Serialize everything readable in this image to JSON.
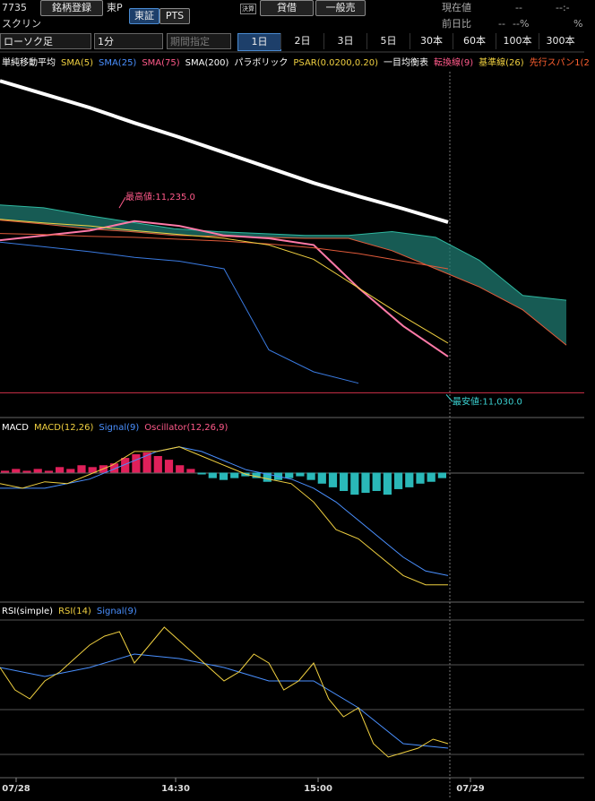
{
  "header": {
    "code": "7735",
    "name": "スクリン",
    "register": "銘柄登録",
    "market": "東P",
    "markets": [
      "東証",
      "PTS"
    ],
    "icon": "決算",
    "buttons": [
      "貸借",
      "一般売"
    ],
    "quote": {
      "current_label": "現在値",
      "current_value": "--",
      "current_time": "--:-",
      "change_label": "前日比",
      "change_value": "--",
      "change_pct": "--%",
      "extra": "%"
    }
  },
  "toolbar": {
    "chart_type": "ローソク足",
    "interval": "1分",
    "period": "期間指定",
    "ranges": [
      "1日",
      "2日",
      "3日",
      "5日",
      "30本",
      "60本",
      "100本",
      "300本"
    ],
    "active_range": 0
  },
  "price_panel": {
    "legend": [
      {
        "text": "単純移動平均",
        "color": "#ffffff"
      },
      {
        "text": "SMA(5)",
        "color": "#f0d040"
      },
      {
        "text": "SMA(25)",
        "color": "#4a90ff"
      },
      {
        "text": "SMA(75)",
        "color": "#ff5a8a"
      },
      {
        "text": "SMA(200)",
        "color": "#ffffff"
      },
      {
        "text": "パラボリック",
        "color": "#ffffff"
      },
      {
        "text": "PSAR(0.0200,0.20)",
        "color": "#f0d040"
      },
      {
        "text": "一目均衡表",
        "color": "#ffffff"
      },
      {
        "text": "転換線(9)",
        "color": "#ff5a8a"
      },
      {
        "text": "基準線(26)",
        "color": "#f0d040"
      },
      {
        "text": "先行スパン1(2",
        "color": "#ff6030"
      }
    ],
    "high_label": "最高値:11,235.0",
    "low_label": "最安値:11,030.0",
    "high": 11235,
    "low": 11030,
    "ylim": [
      11005,
      11362
    ],
    "series": [
      {
        "color": "#ffffff",
        "width": 4,
        "values": [
          11357,
          11343,
          11329,
          11313,
          11298,
          11282,
          11266,
          11250,
          11236,
          11223,
          11209
        ]
      },
      {
        "color": "#ff7aa8",
        "width": 2,
        "values": [
          11190,
          11195,
          11200,
          11210,
          11205,
          11195,
          11192,
          11185,
          11140,
          11100,
          11068
        ]
      },
      {
        "color": "#e05a3a",
        "width": 1,
        "values": [
          11197,
          11196,
          11194,
          11193,
          11191,
          11189,
          11186,
          11182,
          11176,
          11168,
          11160
        ]
      },
      {
        "color": "#f0d040",
        "width": 1,
        "values": [
          11212,
          11208,
          11205,
          11200,
          11196,
          11192,
          11185,
          11170,
          11140,
          11110,
          11082
        ]
      },
      {
        "color": "#3a7ae0",
        "width": 1,
        "values": [
          11188,
          11183,
          11178,
          11172,
          11168,
          11160,
          11075,
          11052,
          11040,
          null,
          null
        ]
      }
    ],
    "cloud": {
      "span_a": [
        11227,
        11224,
        11216,
        11209,
        11202,
        11199,
        11197,
        11195,
        11195,
        11199,
        11193,
        11169,
        11132,
        11127
      ],
      "span_b": [
        11211,
        11207,
        11202,
        11199,
        11195,
        11194,
        11193,
        11192,
        11192,
        11179,
        11160,
        11141,
        11117,
        11080
      ]
    }
  },
  "macd_panel": {
    "legend": [
      {
        "text": "MACD",
        "color": "#ffffff"
      },
      {
        "text": "MACD(12,26)",
        "color": "#f0d040"
      },
      {
        "text": "Signal(9)",
        "color": "#4a90ff"
      },
      {
        "text": "Oscillator(12,26,9)",
        "color": "#ff5a8a"
      }
    ],
    "ylim": [
      -67,
      28
    ],
    "macd": [
      -6,
      -8.5,
      -5,
      -6,
      -1,
      4,
      11.5,
      11.5,
      14,
      9,
      4,
      -1,
      -3.5,
      -6,
      -16,
      -31,
      -36,
      -46,
      -56,
      -61,
      -61
    ],
    "signal": [
      -8.5,
      -8.5,
      -8.5,
      -6,
      -3.5,
      1.5,
      6.5,
      11.5,
      14,
      11.5,
      6.5,
      1.5,
      -1,
      -3.5,
      -8.5,
      -16,
      -26,
      -36,
      -46,
      -53.5,
      -56
    ],
    "oscillator": [
      1,
      2,
      1,
      2,
      1,
      3,
      2,
      4,
      3,
      4,
      5,
      8,
      10,
      11,
      9,
      7,
      4,
      2,
      -1,
      -3,
      -4,
      -3,
      -2,
      -3,
      -5,
      -4,
      -3,
      -2,
      -4,
      -6,
      -8,
      -10,
      -12,
      -11,
      -10,
      -12,
      -9,
      -8,
      -6,
      -5,
      -3
    ]
  },
  "rsi_panel": {
    "legend": [
      {
        "text": "RSI(simple)",
        "color": "#ffffff"
      },
      {
        "text": "RSI(14)",
        "color": "#f0d040"
      },
      {
        "text": "Signal(9)",
        "color": "#4a90ff"
      }
    ],
    "ylim": [
      19,
      97
    ],
    "rsi": [
      69,
      59,
      55,
      63,
      67,
      73,
      79,
      83,
      85,
      71,
      79,
      87,
      81,
      75,
      69,
      63,
      67,
      75,
      71,
      59,
      63,
      71,
      55,
      47,
      51,
      35,
      29,
      31,
      33,
      37,
      35
    ],
    "signal": [
      69,
      65,
      69,
      75,
      73,
      69,
      63,
      63,
      51,
      35,
      33
    ]
  },
  "x_labels": [
    "07/28",
    "14:30",
    "15:00",
    "07/29"
  ]
}
